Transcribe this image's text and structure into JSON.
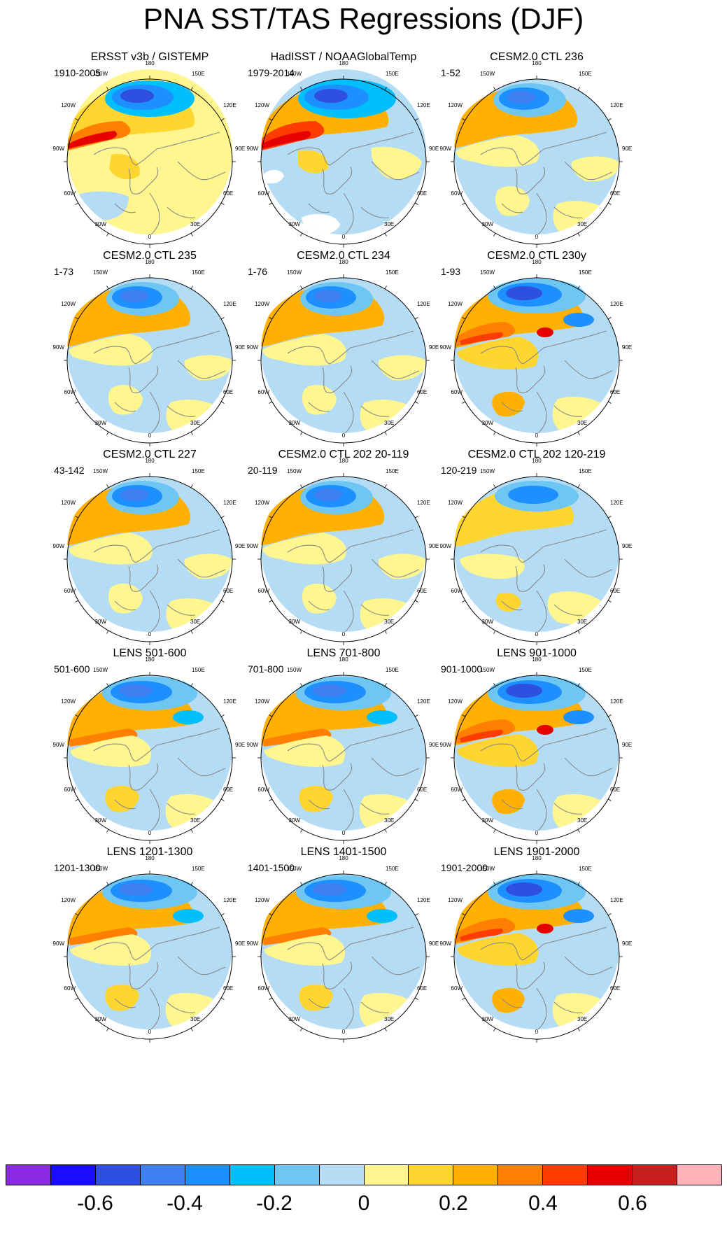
{
  "title": "PNA SST/TAS Regressions (DJF)",
  "panels": [
    {
      "title": "ERSST v3b / GISTEMP",
      "period": "1910-2005",
      "pattern": "obs1"
    },
    {
      "title": "HadISST / NOAAGlobalTemp",
      "period": "1979-2014",
      "pattern": "obs2"
    },
    {
      "title": "CESM2.0 CTL 236",
      "period": "1-52",
      "pattern": "model"
    },
    {
      "title": "CESM2.0 CTL 235",
      "period": "1-73",
      "pattern": "model"
    },
    {
      "title": "CESM2.0 CTL 234",
      "period": "1-76",
      "pattern": "model"
    },
    {
      "title": "CESM2.0 CTL 230y",
      "period": "1-93",
      "pattern": "strong"
    },
    {
      "title": "CESM2.0 CTL 227",
      "period": "43-142",
      "pattern": "model"
    },
    {
      "title": "CESM2.0 CTL 202 20-119",
      "period": "20-119",
      "pattern": "model"
    },
    {
      "title": "CESM2.0 CTL 202 120-219",
      "period": "120-219",
      "pattern": "weak"
    },
    {
      "title": "LENS 501-600",
      "period": "501-600",
      "pattern": "lens"
    },
    {
      "title": "LENS 701-800",
      "period": "701-800",
      "pattern": "lens"
    },
    {
      "title": "LENS 901-1000",
      "period": "901-1000",
      "pattern": "strong"
    },
    {
      "title": "LENS 1201-1300",
      "period": "1201-1300",
      "pattern": "lens"
    },
    {
      "title": "LENS 1401-1500",
      "period": "1401-1500",
      "pattern": "lens"
    },
    {
      "title": "LENS 1901-2000",
      "period": "1901-2000",
      "pattern": "strong"
    }
  ],
  "map_labels": {
    "lon_180": "180",
    "lon_150e": "150E",
    "lon_120e": "120E",
    "lon_90e": "90E",
    "lon_60e": "60E",
    "lon_30e": "30E",
    "lon_0": "0",
    "lon_30w": "30W",
    "lon_60w": "60W",
    "lon_90w": "90W",
    "lon_120w": "120W",
    "lon_150w": "150W"
  },
  "colorbar": {
    "colors": [
      "#8a2be2",
      "#1a0dff",
      "#2e4fe0",
      "#3f7ff0",
      "#1e8fff",
      "#00bfff",
      "#6ec6f2",
      "#b4dcf4",
      "#fff68f",
      "#ffd530",
      "#ffb000",
      "#ff8000",
      "#ff3c00",
      "#e60000",
      "#c81e1e",
      "#ffb3b8"
    ],
    "labels": [
      {
        "text": "-0.6",
        "boundary": 2
      },
      {
        "text": "-0.4",
        "boundary": 4
      },
      {
        "text": "-0.2",
        "boundary": 6
      },
      {
        "text": "0",
        "boundary": 8
      },
      {
        "text": "0.2",
        "boundary": 10
      },
      {
        "text": "0.4",
        "boundary": 12
      },
      {
        "text": "0.6",
        "boundary": 14
      }
    ]
  }
}
